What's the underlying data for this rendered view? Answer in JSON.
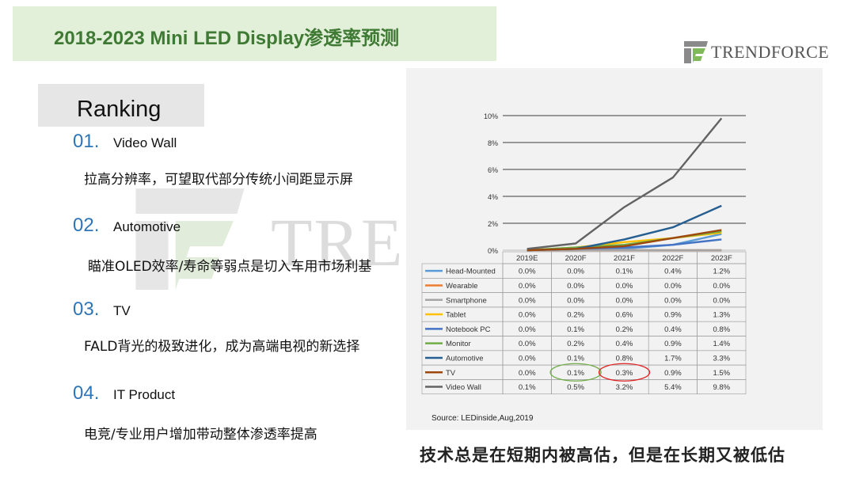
{
  "header": {
    "title": "2018-2023 Mini LED Display渗透率预测"
  },
  "brand": {
    "name": "TrendForce",
    "display": "TRENDFORCE",
    "colors": {
      "green": "#7fb95a",
      "gray": "#8a8a8a"
    }
  },
  "watermark": {
    "text": "TRENDFORCE"
  },
  "ranking": {
    "label": "Ranking",
    "items": [
      {
        "num": "01.",
        "name": "Video Wall",
        "desc": "拉高分辨率，可望取代部分传统小间距显示屏"
      },
      {
        "num": "02.",
        "name": "Automotive",
        "desc": "瞄准OLED效率/寿命等弱点是切入车用市场利基"
      },
      {
        "num": "03.",
        "name": "TV",
        "desc": "FALD背光的极致进化，成为高端电视的新选择"
      },
      {
        "num": "04.",
        "name": "IT Product",
        "desc": "电竞/专业用户增加带动整体渗透率提高"
      }
    ]
  },
  "chart_data": {
    "type": "line",
    "title": "",
    "xlabel": "",
    "ylabel": "",
    "categories": [
      "2019E",
      "2020F",
      "2021F",
      "2022F",
      "2023F"
    ],
    "y_ticks": [
      "0%",
      "2%",
      "4%",
      "6%",
      "8%",
      "10%"
    ],
    "ylim": [
      0,
      10
    ],
    "grid": true,
    "series": [
      {
        "name": "Head-Mounted",
        "color": "#5b9bd5",
        "values": [
          0.0,
          0.0,
          0.1,
          0.4,
          1.2
        ],
        "labels": [
          "0.0%",
          "0.0%",
          "0.1%",
          "0.4%",
          "1.2%"
        ]
      },
      {
        "name": "Wearable",
        "color": "#ed7d31",
        "values": [
          0.0,
          0.0,
          0.0,
          0.0,
          0.0
        ],
        "labels": [
          "0.0%",
          "0.0%",
          "0.0%",
          "0.0%",
          "0.0%"
        ]
      },
      {
        "name": "Smartphone",
        "color": "#a5a5a5",
        "values": [
          0.0,
          0.0,
          0.0,
          0.0,
          0.0
        ],
        "labels": [
          "0.0%",
          "0.0%",
          "0.0%",
          "0.0%",
          "0.0%"
        ]
      },
      {
        "name": "Tablet",
        "color": "#ffc000",
        "values": [
          0.0,
          0.2,
          0.6,
          0.9,
          1.3
        ],
        "labels": [
          "0.0%",
          "0.2%",
          "0.6%",
          "0.9%",
          "1.3%"
        ]
      },
      {
        "name": "Notebook PC",
        "color": "#4472c4",
        "values": [
          0.0,
          0.1,
          0.2,
          0.4,
          0.8
        ],
        "labels": [
          "0.0%",
          "0.1%",
          "0.2%",
          "0.4%",
          "0.8%"
        ]
      },
      {
        "name": "Monitor",
        "color": "#70ad47",
        "values": [
          0.0,
          0.2,
          0.4,
          0.9,
          1.4
        ],
        "labels": [
          "0.0%",
          "0.2%",
          "0.4%",
          "0.9%",
          "1.4%"
        ]
      },
      {
        "name": "Automotive",
        "color": "#255e91",
        "values": [
          0.0,
          0.1,
          0.8,
          1.7,
          3.3
        ],
        "labels": [
          "0.0%",
          "0.1%",
          "0.8%",
          "1.7%",
          "3.3%"
        ]
      },
      {
        "name": "TV",
        "color": "#9e480e",
        "values": [
          0.0,
          0.1,
          0.3,
          0.9,
          1.5
        ],
        "labels": [
          "0.0%",
          "0.1%",
          "0.3%",
          "0.9%",
          "1.5%"
        ]
      },
      {
        "name": "Video Wall",
        "color": "#636363",
        "values": [
          0.1,
          0.5,
          3.2,
          5.4,
          9.8
        ],
        "labels": [
          "0.1%",
          "0.5%",
          "3.2%",
          "5.4%",
          "9.8%"
        ]
      }
    ],
    "highlights": [
      {
        "series": "TV",
        "category": "2020F",
        "color": "#70ad47"
      },
      {
        "series": "TV",
        "category": "2021F",
        "color": "#e02020"
      }
    ],
    "source": "Source: LEDinside,Aug,2019"
  },
  "footer": {
    "text": "技术总是在短期内被高估，但是在长期又被低估"
  }
}
